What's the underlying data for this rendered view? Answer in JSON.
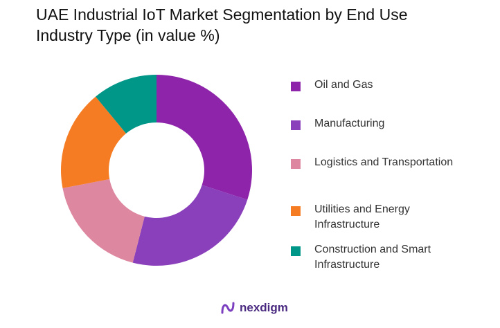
{
  "chart_data": {
    "type": "pie",
    "donut": true,
    "title": "UAE Industrial IoT Market Segmentation by End Use Industry Type (in value %)",
    "categories": [
      "Oil and Gas",
      "Manufacturing",
      "Logistics and Transportation",
      "Utilities and Energy Infrastructure",
      "Construction and Smart Infrastructure"
    ],
    "values": [
      30,
      24,
      18,
      17,
      11
    ],
    "colors": [
      "#8e24aa",
      "#8a3fbb",
      "#de87a0",
      "#f57c22",
      "#009688"
    ],
    "legend_position": "right"
  },
  "logo": {
    "text": "nexdigm",
    "color": "#4a2a80"
  }
}
